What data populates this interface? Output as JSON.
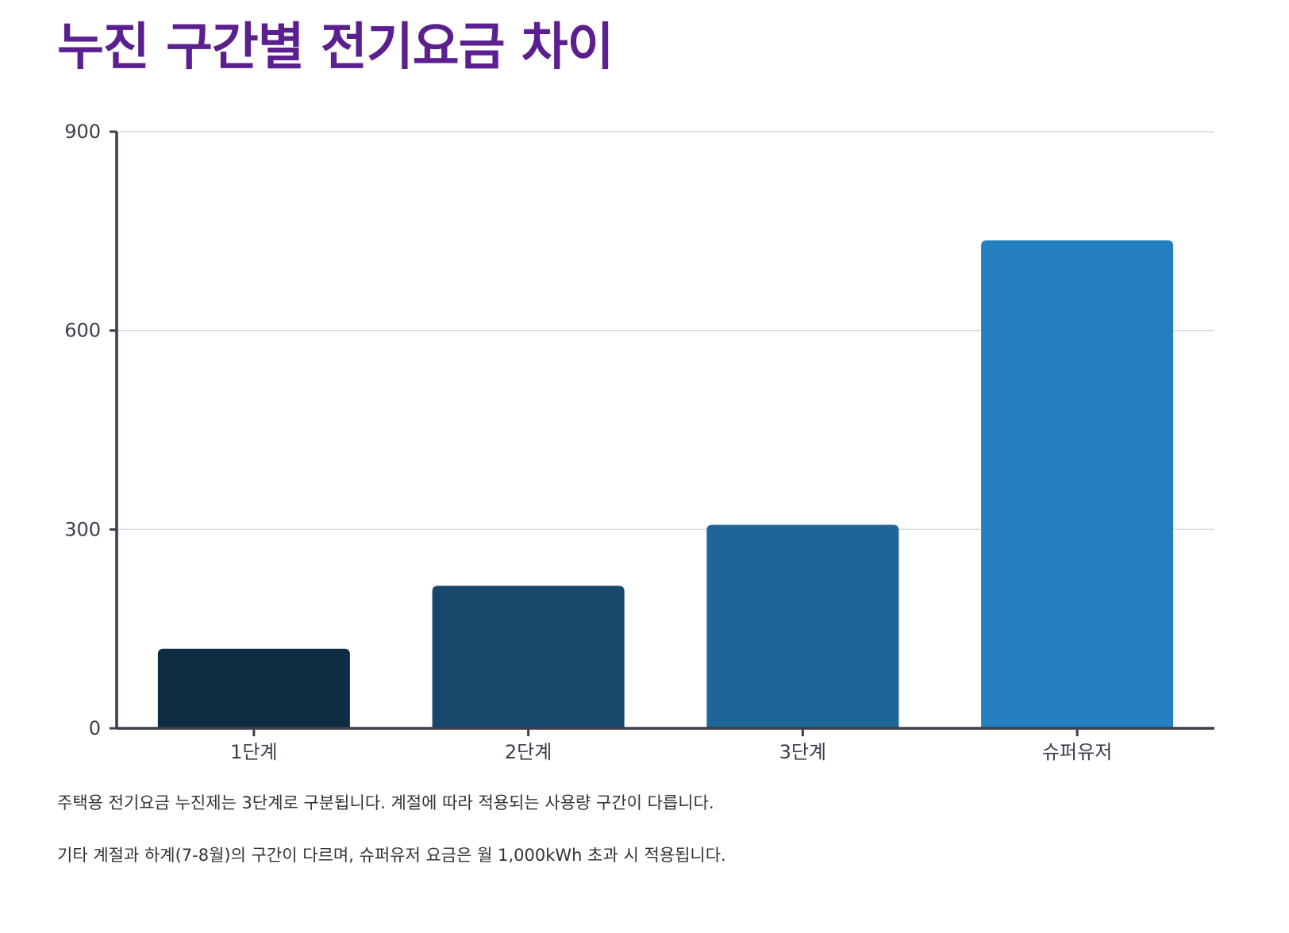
{
  "page": {
    "title": "누진 구간별 전기요금 차이",
    "title_color": "#5b1f8f",
    "notes": [
      "주택용 전기요금 누진제는 3단계로 구분됩니다. 계절에 따라 적용되는 사용량 구간이 다릅니다.",
      "기타 계절과 하계(7-8월)의 구간이 다르며, 슈퍼유저 요금은 월 1,000kWh 초과 시 적용됩니다."
    ]
  },
  "chart_data": {
    "type": "bar",
    "title": "누진 구간별 전기요금 차이",
    "xlabel": "",
    "ylabel": "",
    "categories": [
      "1단계",
      "2단계",
      "3단계",
      "슈퍼유저"
    ],
    "values": [
      120,
      215,
      307,
      736
    ],
    "colors": [
      "#0f2d42",
      "#17486b",
      "#1f6597",
      "#237fbd"
    ],
    "ylim": [
      0,
      900
    ],
    "yticks": [
      0,
      300,
      600,
      900
    ],
    "grid": true,
    "legend": "none"
  }
}
